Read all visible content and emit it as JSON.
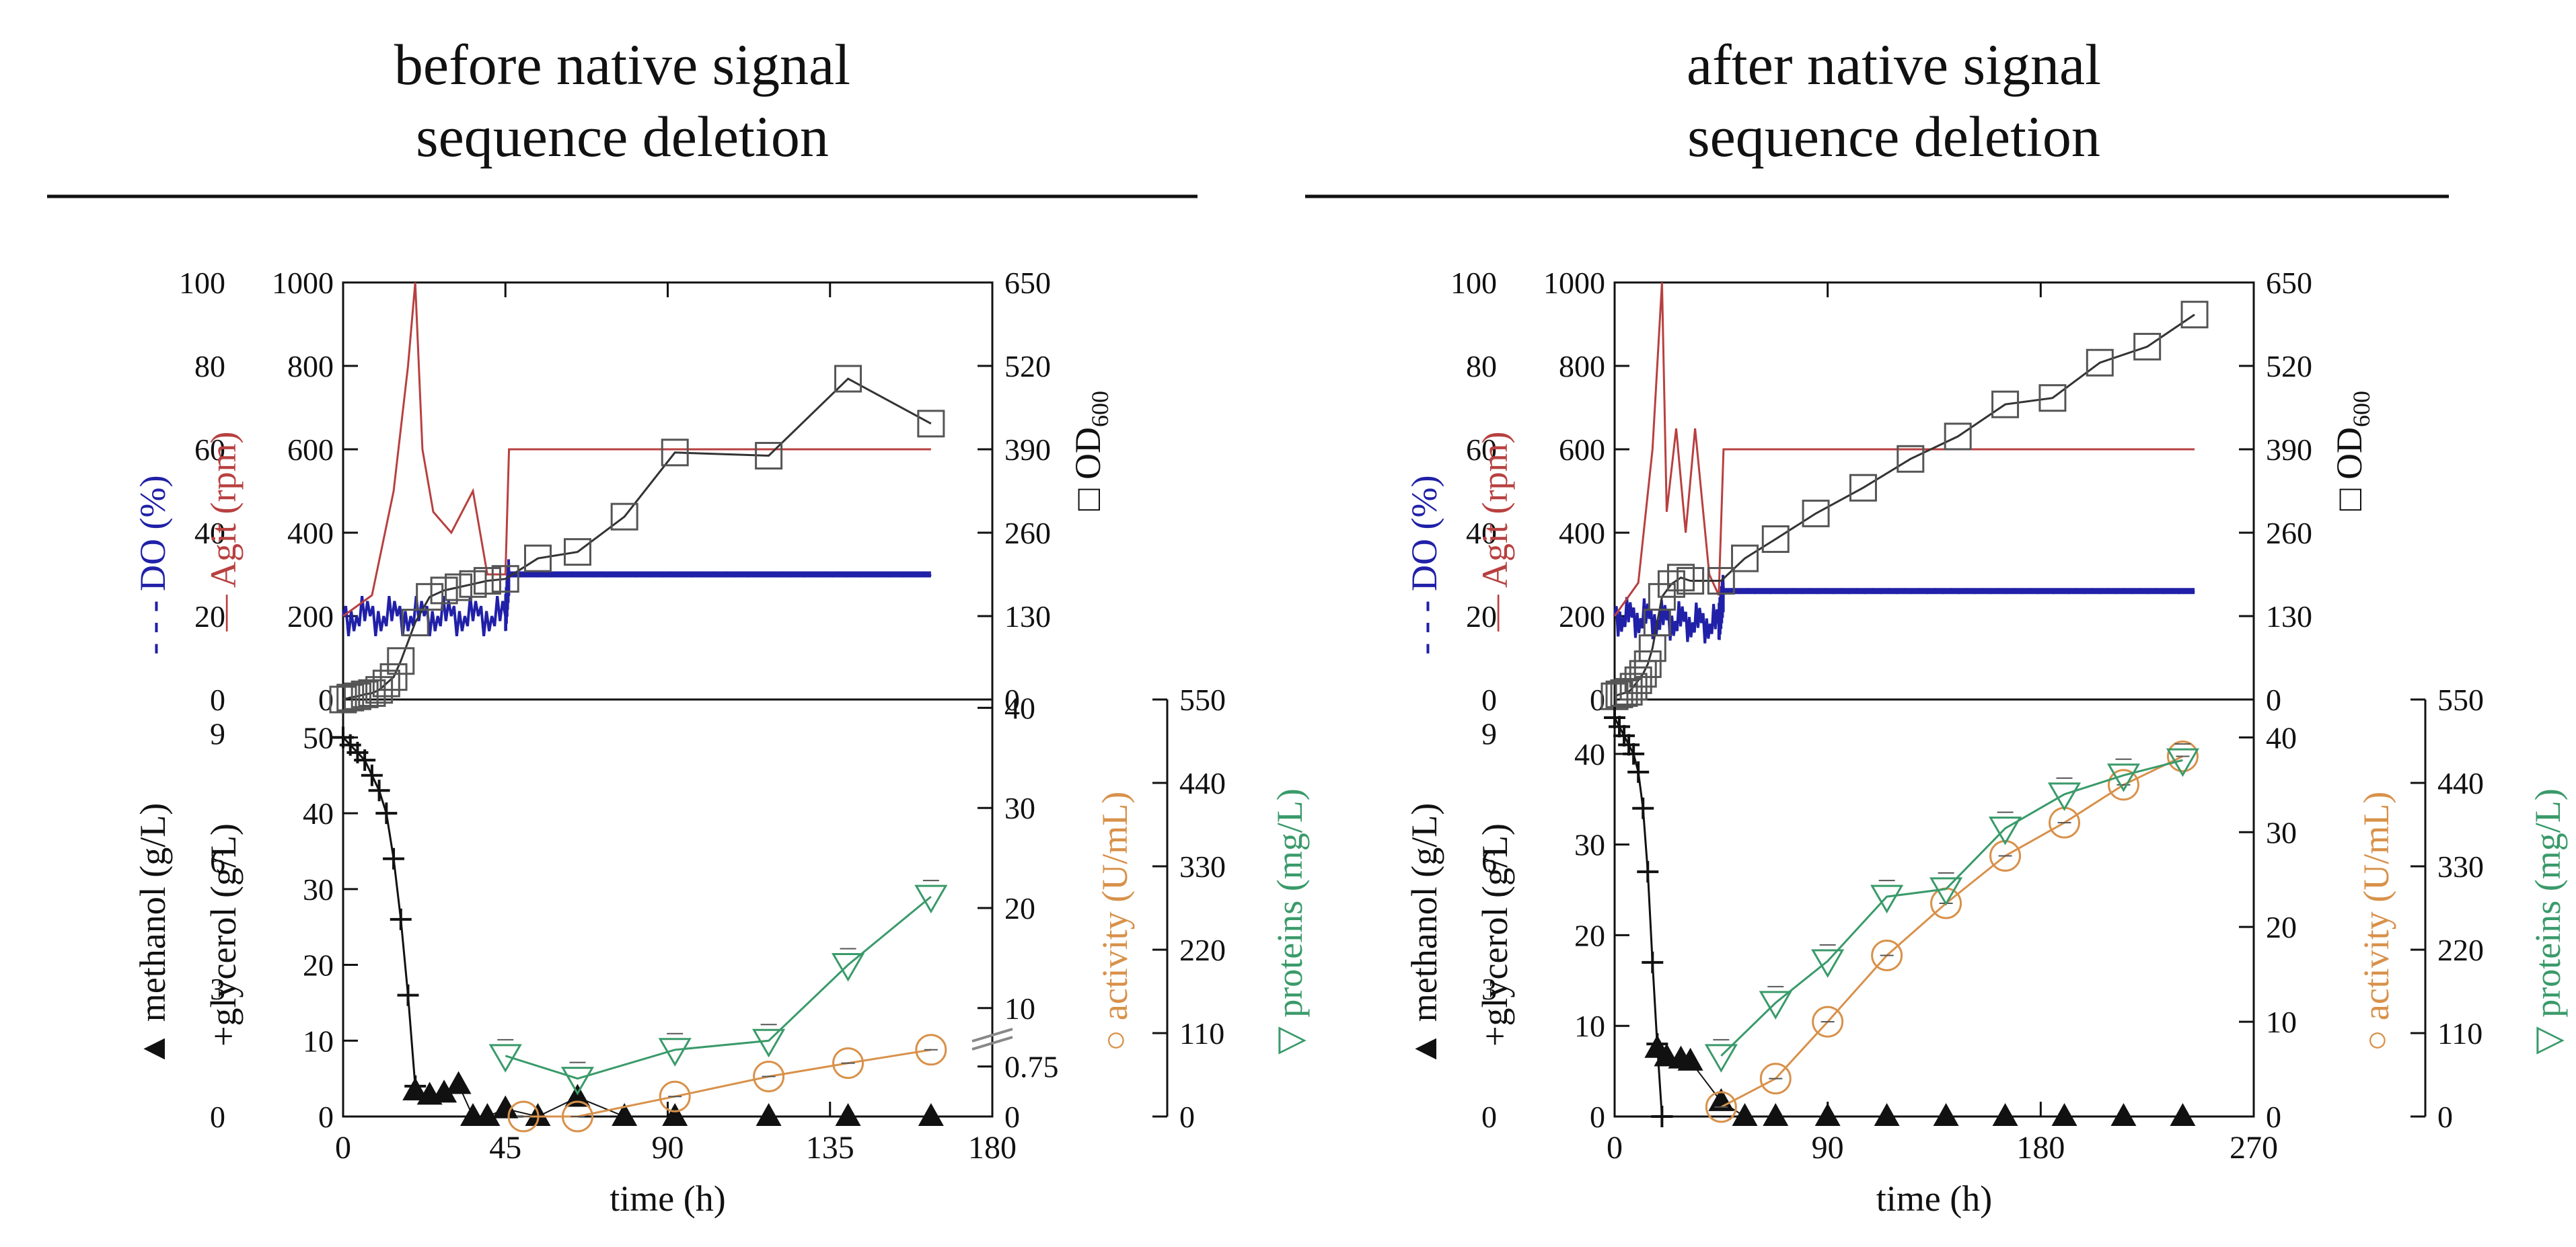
{
  "headers": {
    "left": [
      "before native signal",
      "sequence deletion"
    ],
    "right": [
      "after native signal",
      "sequence deletion"
    ]
  },
  "labels": {
    "do": "DO (%)",
    "agit": "Agit (rpm)",
    "od": "OD",
    "od_sub": "600",
    "methanol": "methanol (g/L)",
    "glycerol": "glycerol (g/L)",
    "activity": "activity (U/mL)",
    "proteins": "proteins (mg/L)",
    "time": "time (h)"
  },
  "colors": {
    "do": "#2020a8",
    "agit": "#b84040",
    "od": "#555555",
    "activity": "#d8914a",
    "proteins": "#3a9a6a",
    "black": "#111111"
  },
  "chart_data": [
    {
      "type": "line",
      "panel": "before native signal sequence deletion",
      "time_ticks": [
        "0",
        "45",
        "90",
        "135",
        "180"
      ],
      "xlim": [
        0,
        180
      ],
      "axes": {
        "do": {
          "ylim": [
            0,
            100
          ],
          "ticks": [
            "0",
            "20",
            "40",
            "60",
            "80",
            "100"
          ]
        },
        "agit": {
          "ylim": [
            0,
            1000
          ],
          "ticks": [
            "0",
            "200",
            "400",
            "600",
            "800",
            "1000"
          ]
        },
        "od": {
          "ylim": [
            0,
            650
          ],
          "ticks": [
            "0",
            "130",
            "260",
            "390",
            "520",
            "650"
          ]
        },
        "methanol": {
          "ylim": [
            0,
            9.8
          ],
          "ticks": [
            "0",
            "3",
            "6",
            "9"
          ]
        },
        "glycerol": {
          "ylim": [
            0,
            55
          ],
          "ticks": [
            "0",
            "10",
            "20",
            "30",
            "40",
            "50"
          ]
        },
        "activity": {
          "ylim": [
            0,
            42
          ],
          "ticks": [
            "0",
            "0.75",
            "10",
            "20",
            "30",
            "40"
          ],
          "broken": true
        },
        "proteins": {
          "ylim": [
            0,
            550
          ],
          "ticks": [
            "0",
            "110",
            "220",
            "330",
            "440",
            "550"
          ]
        }
      },
      "series": [
        {
          "name": "OD600",
          "axis": "od",
          "x": [
            0,
            2,
            4,
            6,
            8,
            10,
            12,
            14,
            16,
            20,
            24,
            28,
            32,
            36,
            40,
            45,
            54,
            65,
            78,
            92,
            118,
            140,
            163
          ],
          "y": [
            0,
            3,
            5,
            8,
            10,
            15,
            25,
            35,
            60,
            120,
            160,
            170,
            175,
            180,
            185,
            188,
            220,
            230,
            285,
            385,
            380,
            500,
            430
          ]
        },
        {
          "name": "glycerol",
          "axis": "glycerol",
          "x": [
            0,
            2,
            4,
            6,
            8,
            10,
            12,
            14,
            16,
            18,
            20
          ],
          "y": [
            50,
            49,
            48,
            47,
            45,
            43,
            40,
            34,
            26,
            16,
            4
          ]
        },
        {
          "name": "methanol",
          "axis": "methanol",
          "x": [
            20,
            24,
            28,
            32,
            36,
            40,
            45,
            54,
            65,
            78,
            92,
            118,
            140,
            163
          ],
          "y": [
            0.6,
            0.5,
            0.55,
            0.75,
            0,
            0,
            0.18,
            0,
            0.45,
            0,
            0,
            0,
            0,
            0
          ]
        },
        {
          "name": "activity",
          "axis": "activity",
          "x": [
            50,
            65,
            92,
            118,
            140,
            163
          ],
          "y": [
            0,
            0,
            0.3,
            0.6,
            0.8,
            1.0
          ]
        },
        {
          "name": "proteins",
          "axis": "proteins",
          "x": [
            45,
            65,
            92,
            118,
            140,
            163
          ],
          "y": [
            80,
            50,
            88,
            100,
            200,
            290
          ]
        },
        {
          "name": "Agit",
          "axis": "agit",
          "x": [
            0,
            8,
            14,
            18,
            20,
            22,
            25,
            30,
            36,
            40,
            45,
            46,
            163
          ],
          "y": [
            200,
            250,
            500,
            800,
            1000,
            600,
            450,
            400,
            500,
            300,
            300,
            600,
            600
          ]
        },
        {
          "name": "DO",
          "axis": "do",
          "x": [
            0,
            45,
            46,
            163
          ],
          "y": [
            20,
            20,
            30,
            30
          ]
        }
      ]
    },
    {
      "type": "line",
      "panel": "after native signal sequence deletion",
      "time_ticks": [
        "0",
        "90",
        "180",
        "270"
      ],
      "xlim": [
        0,
        270
      ],
      "axes": {
        "do": {
          "ylim": [
            0,
            100
          ],
          "ticks": [
            "0",
            "20",
            "40",
            "60",
            "80",
            "100"
          ]
        },
        "agit": {
          "ylim": [
            0,
            1000
          ],
          "ticks": [
            "0",
            "200",
            "400",
            "600",
            "800",
            "1000"
          ]
        },
        "od": {
          "ylim": [
            0,
            650
          ],
          "ticks": [
            "0",
            "130",
            "260",
            "390",
            "520",
            "650"
          ]
        },
        "methanol": {
          "ylim": [
            0,
            9.8
          ],
          "ticks": [
            "0",
            "3",
            "6",
            "9"
          ]
        },
        "glycerol": {
          "ylim": [
            0,
            46
          ],
          "ticks": [
            "0",
            "10",
            "20",
            "30",
            "40"
          ]
        },
        "activity": {
          "ylim": [
            0,
            44
          ],
          "ticks": [
            "0",
            "10",
            "20",
            "30",
            "40"
          ]
        },
        "proteins": {
          "ylim": [
            0,
            550
          ],
          "ticks": [
            "0",
            "110",
            "220",
            "330",
            "440",
            "550"
          ]
        }
      },
      "series": [
        {
          "name": "OD600",
          "axis": "od",
          "x": [
            0,
            2,
            4,
            6,
            8,
            10,
            12,
            14,
            16,
            18,
            20,
            24,
            28,
            32,
            45,
            55,
            68,
            85,
            105,
            125,
            145,
            165,
            185,
            205,
            225,
            245
          ],
          "y": [
            5,
            8,
            10,
            12,
            20,
            30,
            40,
            55,
            80,
            120,
            160,
            180,
            190,
            185,
            185,
            220,
            250,
            290,
            330,
            375,
            410,
            460,
            470,
            525,
            550,
            600
          ]
        },
        {
          "name": "glycerol",
          "axis": "glycerol",
          "x": [
            0,
            2,
            4,
            6,
            8,
            10,
            12,
            14,
            16,
            18,
            20
          ],
          "y": [
            44,
            43,
            42,
            41,
            40,
            38,
            34,
            27,
            17,
            8,
            0
          ]
        },
        {
          "name": "methanol",
          "axis": "methanol",
          "x": [
            18,
            22,
            28,
            32,
            45,
            55,
            68,
            90,
            115,
            140,
            165,
            190,
            215,
            240
          ],
          "y": [
            1.6,
            1.4,
            1.35,
            1.3,
            0.35,
            0,
            0,
            0,
            0,
            0,
            0,
            0,
            0,
            0
          ]
        },
        {
          "name": "activity",
          "axis": "activity",
          "x": [
            45,
            68,
            90,
            115,
            140,
            165,
            190,
            215,
            240
          ],
          "y": [
            1,
            4,
            10,
            17,
            22.5,
            27.5,
            31,
            35,
            38
          ]
        },
        {
          "name": "proteins",
          "axis": "proteins",
          "x": [
            45,
            68,
            90,
            115,
            140,
            165,
            190,
            215,
            240
          ],
          "y": [
            80,
            150,
            205,
            290,
            300,
            380,
            425,
            450,
            470
          ]
        },
        {
          "name": "Agit",
          "axis": "agit",
          "x": [
            0,
            10,
            16,
            20,
            22,
            26,
            30,
            34,
            40,
            44,
            46,
            245
          ],
          "y": [
            200,
            280,
            600,
            1000,
            450,
            650,
            400,
            650,
            300,
            250,
            600,
            600
          ]
        },
        {
          "name": "DO",
          "axis": "do",
          "x": [
            0,
            44,
            46,
            245
          ],
          "y": [
            20,
            18,
            26,
            26
          ]
        }
      ]
    }
  ]
}
